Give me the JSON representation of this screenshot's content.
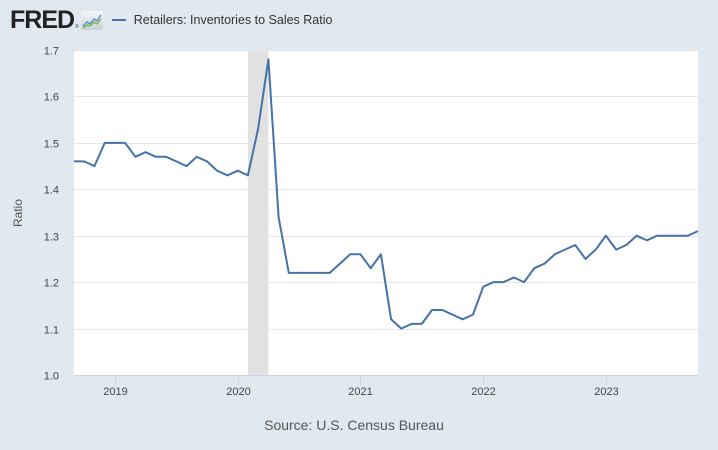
{
  "header": {
    "logo_text": "FRED",
    "logo_reg": "®",
    "logo_icon": "fred-chart-icon",
    "legend_label": "Retailers: Inventories to Sales Ratio",
    "legend_color": "#4572a7"
  },
  "footer": {
    "source": "Source: U.S. Census Bureau"
  },
  "colors": {
    "background": "#e1e9f0",
    "plot_background": "#ffffff",
    "gridline": "#e6e6e6",
    "line": "#4572a7",
    "recession": "#e1e1e1"
  },
  "chart_data": {
    "type": "line",
    "title": "Retailers: Inventories to Sales Ratio",
    "xlabel": "",
    "ylabel": "Ratio",
    "ylim": [
      1.0,
      1.7
    ],
    "yticks": [
      "1.0",
      "1.1",
      "1.2",
      "1.3",
      "1.4",
      "1.5",
      "1.6",
      "1.7"
    ],
    "xticks": [
      "2019",
      "2020",
      "2021",
      "2022",
      "2023"
    ],
    "grid": true,
    "legend_position": "top-left",
    "recession_shading": [
      {
        "start": "2020-02",
        "end": "2020-04"
      }
    ],
    "x": [
      "2018-09",
      "2018-10",
      "2018-11",
      "2018-12",
      "2019-01",
      "2019-02",
      "2019-03",
      "2019-04",
      "2019-05",
      "2019-06",
      "2019-07",
      "2019-08",
      "2019-09",
      "2019-10",
      "2019-11",
      "2019-12",
      "2020-01",
      "2020-02",
      "2020-03",
      "2020-04",
      "2020-05",
      "2020-06",
      "2020-07",
      "2020-08",
      "2020-09",
      "2020-10",
      "2020-11",
      "2020-12",
      "2021-01",
      "2021-02",
      "2021-03",
      "2021-04",
      "2021-05",
      "2021-06",
      "2021-07",
      "2021-08",
      "2021-09",
      "2021-10",
      "2021-11",
      "2021-12",
      "2022-01",
      "2022-02",
      "2022-03",
      "2022-04",
      "2022-05",
      "2022-06",
      "2022-07",
      "2022-08",
      "2022-09",
      "2022-10",
      "2022-11",
      "2022-12",
      "2023-01",
      "2023-02",
      "2023-03",
      "2023-04",
      "2023-05",
      "2023-06",
      "2023-07",
      "2023-08",
      "2023-09",
      "2023-10"
    ],
    "series": [
      {
        "name": "Retailers: Inventories to Sales Ratio",
        "values": [
          1.46,
          1.46,
          1.45,
          1.5,
          1.5,
          1.5,
          1.47,
          1.48,
          1.47,
          1.47,
          1.46,
          1.45,
          1.47,
          1.46,
          1.44,
          1.43,
          1.44,
          1.43,
          1.53,
          1.68,
          1.34,
          1.22,
          1.22,
          1.22,
          1.22,
          1.22,
          1.24,
          1.26,
          1.26,
          1.23,
          1.26,
          1.12,
          1.1,
          1.11,
          1.11,
          1.14,
          1.14,
          1.13,
          1.12,
          1.13,
          1.19,
          1.2,
          1.2,
          1.21,
          1.2,
          1.23,
          1.24,
          1.26,
          1.27,
          1.28,
          1.25,
          1.27,
          1.3,
          1.27,
          1.28,
          1.3,
          1.29,
          1.3,
          1.3,
          1.3,
          1.3,
          1.31
        ]
      }
    ]
  }
}
